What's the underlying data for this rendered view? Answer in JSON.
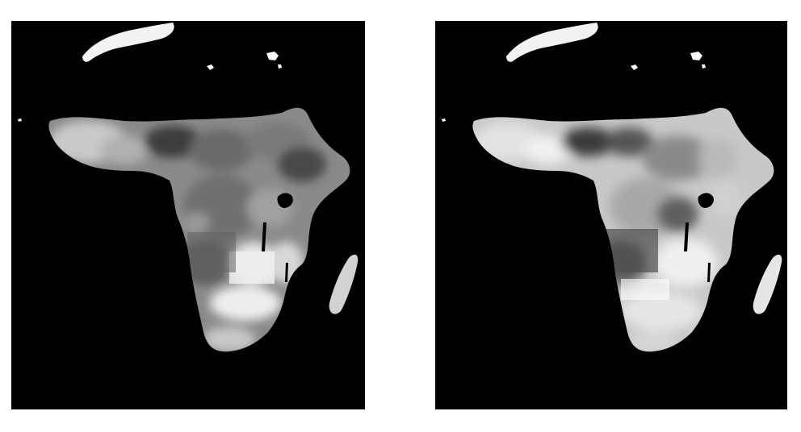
{
  "figure": {
    "panels": [
      {
        "id": "left",
        "style": "patchy-regions",
        "base_fill": "#8a8a8a",
        "background": "#000000"
      },
      {
        "id": "right",
        "style": "smooth-light",
        "base_fill": "#c8c8c8",
        "background": "#000000"
      }
    ]
  }
}
